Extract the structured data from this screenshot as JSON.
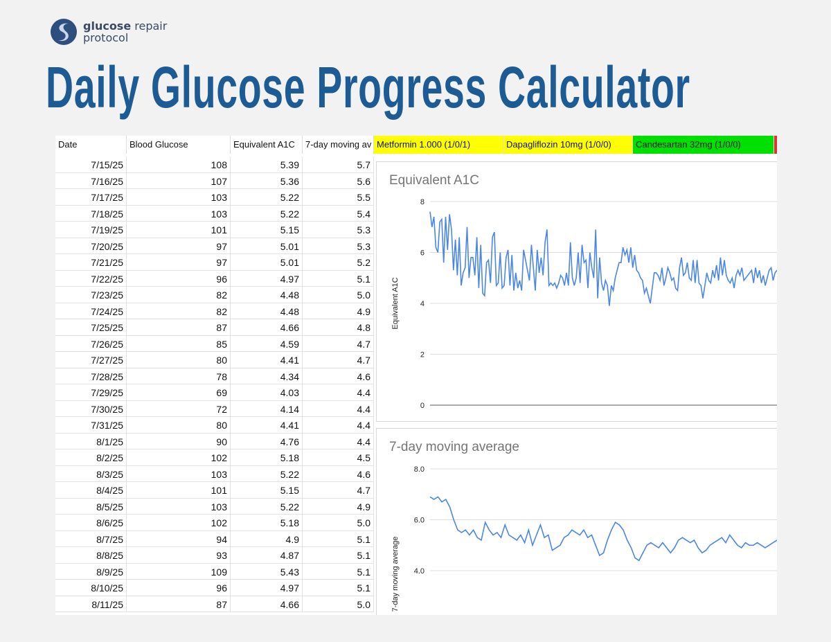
{
  "brand": {
    "name_bold": "glucose",
    "name_rest": " repair",
    "name_line2": "protocol"
  },
  "page_title": "Daily Glucose Progress Calculator",
  "table": {
    "headers": [
      "Date",
      "Blood Glucose",
      "Equivalent A1C",
      "7-day moving av",
      "Metformin 1.000 (1/0/1)",
      "Dapagliflozin 10mg (1/0/0)",
      "Candesartan 32mg (1/0/0)"
    ],
    "header_colors": [
      "#ffffff",
      "#ffffff",
      "#ffffff",
      "#ffffff",
      "#ffff00",
      "#ffff00",
      "#00e000"
    ],
    "rows": [
      [
        "7/15/25",
        "108",
        "5.39",
        "5.7"
      ],
      [
        "7/16/25",
        "107",
        "5.36",
        "5.6"
      ],
      [
        "7/17/25",
        "103",
        "5.22",
        "5.5"
      ],
      [
        "7/18/25",
        "103",
        "5.22",
        "5.4"
      ],
      [
        "7/19/25",
        "101",
        "5.15",
        "5.3"
      ],
      [
        "7/20/25",
        "97",
        "5.01",
        "5.3"
      ],
      [
        "7/21/25",
        "97",
        "5.01",
        "5.2"
      ],
      [
        "7/22/25",
        "96",
        "4.97",
        "5.1"
      ],
      [
        "7/23/25",
        "82",
        "4.48",
        "5.0"
      ],
      [
        "7/24/25",
        "82",
        "4.48",
        "4.9"
      ],
      [
        "7/25/25",
        "87",
        "4.66",
        "4.8"
      ],
      [
        "7/26/25",
        "85",
        "4.59",
        "4.7"
      ],
      [
        "7/27/25",
        "80",
        "4.41",
        "4.7"
      ],
      [
        "7/28/25",
        "78",
        "4.34",
        "4.6"
      ],
      [
        "7/29/25",
        "69",
        "4.03",
        "4.4"
      ],
      [
        "7/30/25",
        "72",
        "4.14",
        "4.4"
      ],
      [
        "7/31/25",
        "80",
        "4.41",
        "4.4"
      ],
      [
        "8/1/25",
        "90",
        "4.76",
        "4.4"
      ],
      [
        "8/2/25",
        "102",
        "5.18",
        "4.5"
      ],
      [
        "8/3/25",
        "103",
        "5.22",
        "4.6"
      ],
      [
        "8/4/25",
        "101",
        "5.15",
        "4.7"
      ],
      [
        "8/5/25",
        "103",
        "5.22",
        "4.9"
      ],
      [
        "8/6/25",
        "102",
        "5.18",
        "5.0"
      ],
      [
        "8/7/25",
        "94",
        "4.9",
        "5.1"
      ],
      [
        "8/8/25",
        "93",
        "4.87",
        "5.1"
      ],
      [
        "8/9/25",
        "109",
        "5.43",
        "5.1"
      ],
      [
        "8/10/25",
        "96",
        "4.97",
        "5.1"
      ],
      [
        "8/11/25",
        "87",
        "4.66",
        "5.0"
      ]
    ]
  },
  "chart_data": [
    {
      "type": "line",
      "title": "Equivalent A1C",
      "ylabel": "Equivalent A1C",
      "xlabel": "",
      "ylim": [
        0,
        8
      ],
      "yticks": [
        "0",
        "2",
        "4",
        "6",
        "8"
      ],
      "color": "#4a86e8",
      "values": [
        7.6,
        7.0,
        7.4,
        6.2,
        6.0,
        7.2,
        7.3,
        5.6,
        7.4,
        6.1,
        7.5,
        6.9,
        5.3,
        6.5,
        5.1,
        6.6,
        4.7,
        5.2,
        5.4,
        7.0,
        5.0,
        5.8,
        5.8,
        5.1,
        6.6,
        4.6,
        6.3,
        4.4,
        4.3,
        5.6,
        5.7,
        4.8,
        6.6,
        6.8,
        4.7,
        4.8,
        6.0,
        4.6,
        4.7,
        5.8,
        6.1,
        4.7,
        5.9,
        4.5,
        5.2,
        4.6,
        4.9,
        4.5,
        6.1,
        5.7,
        5.3,
        4.9,
        6.3,
        5.4,
        4.5,
        6.1,
        5.2,
        5.8,
        5.1,
        6.4,
        6.9,
        4.7,
        4.8,
        4.7,
        4.8,
        4.6,
        4.8,
        5.1,
        5.0,
        4.7,
        5.2,
        4.7,
        6.4,
        5.0,
        4.7,
        5.0,
        6.0,
        4.8,
        6.3,
        5.6,
        5.7,
        4.6,
        6.0,
        5.4,
        5.0,
        6.9,
        4.2,
        5.8,
        4.8,
        4.5,
        4.9,
        4.7,
        3.9,
        4.7,
        4.5,
        5.0,
        5.3,
        5.6,
        5.6,
        6.2,
        5.9,
        6.1,
        5.6,
        6.2,
        5.4,
        5.9,
        5.3,
        5.2,
        5.0,
        4.9,
        4.4,
        4.6,
        4.3,
        4.0,
        4.6,
        5.2,
        5.2,
        5.1,
        4.9,
        5.4,
        4.7,
        5.0,
        5.4,
        5.2,
        4.9,
        5.0,
        4.6,
        4.5,
        5.4,
        5.8,
        5.1,
        5.2,
        5.6,
        5.0,
        4.9,
        5.7,
        4.8,
        5.7,
        4.8,
        4.7,
        4.2,
        4.7,
        5.2,
        4.9,
        4.8,
        5.3,
        5.0,
        5.5,
        4.9,
        5.8,
        5.1,
        5.7,
        5.1,
        4.9,
        4.8,
        5.0,
        4.6,
        5.1,
        5.3,
        5.1,
        5.4,
        4.9,
        5.0,
        5.1,
        5.2,
        5.3,
        4.8,
        5.4,
        5.0,
        5.3,
        4.8,
        5.1,
        4.7,
        5.0,
        5.3,
        5.4,
        4.9,
        5.2,
        5.3
      ]
    },
    {
      "type": "line",
      "title": "7-day moving average",
      "ylabel": "7-day moving average",
      "xlabel": "",
      "ylim": [
        4.0,
        8.0
      ],
      "yticks": [
        "4.0",
        "6.0",
        "8.0"
      ],
      "color": "#4a86e8",
      "values": [
        6.9,
        6.8,
        6.9,
        6.7,
        6.8,
        6.5,
        6.0,
        5.6,
        5.5,
        5.6,
        5.4,
        5.6,
        5.3,
        5.2,
        5.9,
        5.6,
        5.4,
        5.5,
        5.3,
        5.8,
        5.4,
        5.3,
        5.2,
        5.4,
        5.1,
        5.6,
        5.0,
        5.4,
        5.8,
        5.3,
        5.4,
        4.8,
        4.9,
        5.0,
        5.3,
        5.4,
        5.6,
        5.5,
        5.4,
        5.6,
        5.3,
        5.4,
        5.0,
        4.6,
        4.7,
        5.2,
        5.6,
        5.9,
        5.8,
        5.6,
        5.2,
        4.9,
        4.5,
        4.4,
        4.7,
        5.0,
        5.1,
        5.0,
        4.9,
        5.1,
        4.9,
        4.7,
        4.9,
        5.2,
        5.3,
        5.2,
        5.1,
        5.2,
        4.9,
        4.7,
        4.8,
        5.0,
        5.1,
        5.2,
        5.3,
        5.1,
        5.4,
        5.2,
        5.0,
        4.9,
        5.1,
        5.0,
        5.0,
        5.1,
        5.0,
        4.9,
        5.0,
        5.1,
        5.2
      ]
    }
  ]
}
